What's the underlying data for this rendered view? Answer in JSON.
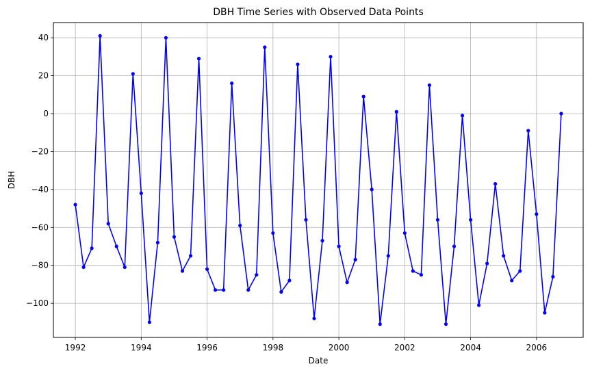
{
  "chart_data": {
    "type": "line",
    "title": "DBH Time Series with Observed Data Points",
    "xlabel": "Date",
    "ylabel": "DBH",
    "x_ticks": [
      "1992",
      "1994",
      "1996",
      "1998",
      "2000",
      "2002",
      "2004",
      "2006"
    ],
    "y_ticks": [
      "40",
      "20",
      "0",
      "−20",
      "−40",
      "−60",
      "−80",
      "−100"
    ],
    "ylim": [
      -118,
      48
    ],
    "xlim": [
      "1991-05",
      "2007-06"
    ],
    "grid": true,
    "line_color": "#0000ff",
    "marker": "circle",
    "series": [
      {
        "x": [
          "1992-01",
          "1992-04",
          "1992-07",
          "1992-10",
          "1993-01",
          "1993-04",
          "1993-07",
          "1993-10",
          "1994-01",
          "1994-04",
          "1994-07",
          "1994-10",
          "1995-01",
          "1995-04",
          "1995-07",
          "1995-10",
          "1996-01",
          "1996-04",
          "1996-07",
          "1996-10",
          "1997-01",
          "1997-04",
          "1997-07",
          "1997-10",
          "1998-01",
          "1998-04",
          "1998-07",
          "1998-10",
          "1999-01",
          "1999-04",
          "1999-07",
          "1999-10",
          "2000-01",
          "2000-04",
          "2000-07",
          "2000-10",
          "2001-01",
          "2001-04",
          "2001-07",
          "2001-10",
          "2002-01",
          "2002-04",
          "2002-07",
          "2002-10",
          "2003-01",
          "2003-04",
          "2003-07",
          "2003-10",
          "2004-01",
          "2004-04",
          "2004-07",
          "2004-10",
          "2005-01",
          "2005-04",
          "2005-07",
          "2005-10",
          "2006-01",
          "2006-04",
          "2006-07",
          "2006-10"
        ],
        "values": [
          -48,
          -81,
          -71,
          41,
          -58,
          -70,
          -81,
          21,
          -42,
          -110,
          -68,
          40,
          -65,
          -83,
          -75,
          29,
          -82,
          -93,
          -93,
          16,
          -59,
          -93,
          -85,
          35,
          -63,
          -94,
          -88,
          26,
          -56,
          -108,
          -67,
          30,
          -70,
          -89,
          -77,
          9,
          -40,
          -111,
          -75,
          1,
          -63,
          -83,
          -85,
          15,
          -56,
          -111,
          -70,
          -1,
          -56,
          -101,
          -79,
          -37,
          -75,
          -88,
          -83,
          -9,
          -53,
          -105,
          -86,
          0
        ]
      }
    ]
  }
}
